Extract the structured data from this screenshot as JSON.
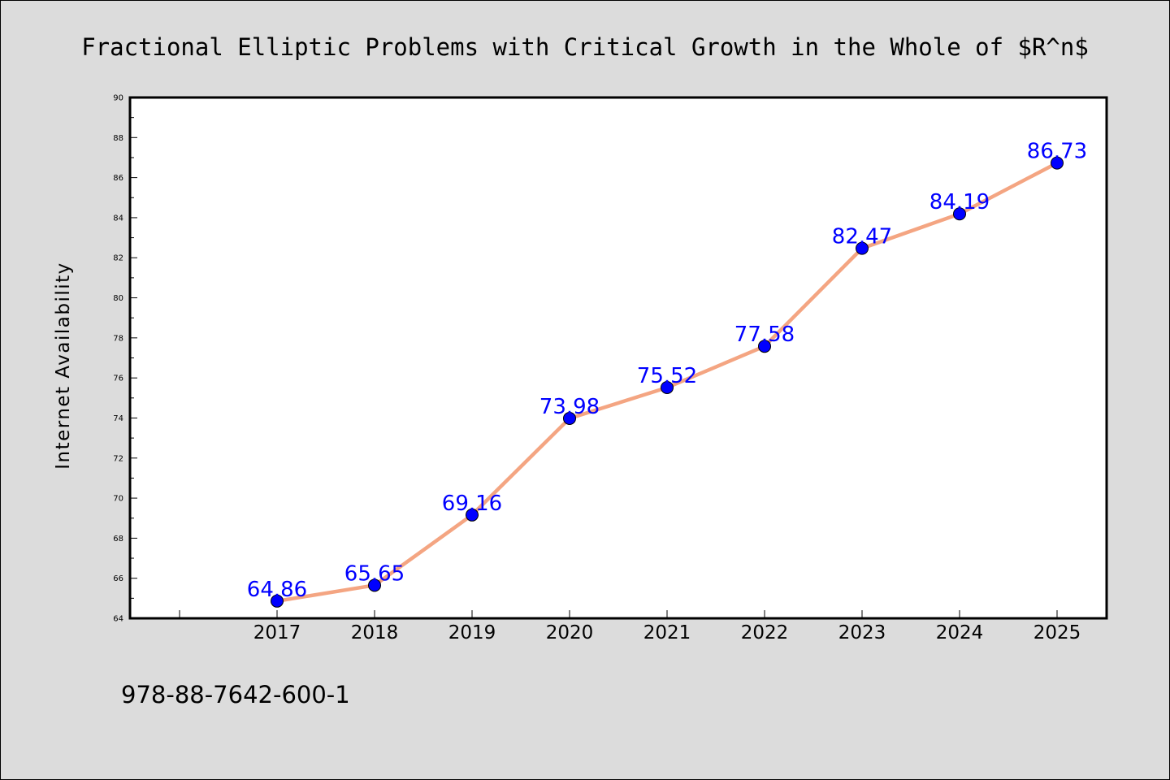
{
  "chart_data": {
    "type": "line",
    "title": "Fractional Elliptic Problems with Critical Growth in the Whole of $R^n$",
    "xlabel": "",
    "ylabel": "Internet Availability",
    "categories": [
      "2017",
      "2018",
      "2019",
      "2020",
      "2021",
      "2022",
      "2023",
      "2024",
      "2025"
    ],
    "series": [
      {
        "values": [
          64.86,
          65.65,
          69.16,
          73.98,
          75.52,
          77.58,
          82.47,
          84.19,
          86.73
        ],
        "data_labels": [
          "64.86",
          "65.65",
          "69.16",
          "73.98",
          "75.52",
          "77.58",
          "82.47",
          "84.19",
          "86.73"
        ]
      }
    ],
    "ylim": [
      64,
      90
    ],
    "ytick_labels": [
      "64",
      "66",
      "68",
      "70",
      "72",
      "74",
      "76",
      "78",
      "80",
      "82",
      "84",
      "86",
      "88",
      "90"
    ],
    "grid": false,
    "legend": "none",
    "line_color": "#f4a582",
    "marker_color": "#0000ff",
    "label_color": "#0000ff",
    "plot_background": "#ffffff",
    "figure_background": "#dcdcdc"
  },
  "footer": {
    "isbn": "978-88-7642-600-1"
  }
}
